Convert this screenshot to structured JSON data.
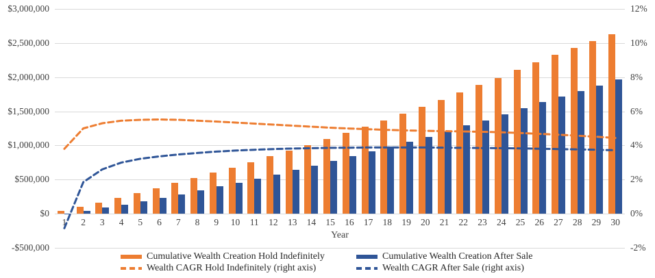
{
  "colors": {
    "hold_orange": "#ED7D31",
    "sale_blue": "#2F5597",
    "gridline": "#d9d9d9",
    "text": "#404040"
  },
  "chart_data": {
    "type": "combo-bar-line",
    "title": "",
    "xlabel": "Year",
    "categories": [
      "1",
      "2",
      "3",
      "4",
      "5",
      "6",
      "7",
      "8",
      "9",
      "10",
      "11",
      "12",
      "13",
      "14",
      "15",
      "16",
      "17",
      "18",
      "19",
      "20",
      "21",
      "22",
      "23",
      "24",
      "25",
      "26",
      "27",
      "28",
      "29",
      "30"
    ],
    "left_axis": {
      "min": -500000,
      "max": 3000000,
      "tick_values": [
        3000000,
        2500000,
        2000000,
        1500000,
        1000000,
        500000,
        0,
        -500000
      ],
      "tick_labels": [
        "$3,000,000",
        "$2,500,000",
        "$2,000,000",
        "$1,500,000",
        "$1,000,000",
        "$500,000",
        "$0",
        "-$500,000"
      ]
    },
    "right_axis": {
      "min": -2,
      "max": 12,
      "tick_values": [
        12,
        10,
        8,
        6,
        4,
        2,
        0,
        -2
      ],
      "tick_labels": [
        "12%",
        "10%",
        "8%",
        "6%",
        "4%",
        "2%",
        "0%",
        "-2%"
      ]
    },
    "grid": "horizontal-only",
    "legend_position": "bottom",
    "series": [
      {
        "name": "Cumulative Wealth Creation Hold Indefinitely",
        "type": "bar",
        "axis": "left",
        "color": "#ED7D31",
        "values": [
          40000,
          100000,
          165000,
          230000,
          300000,
          370000,
          450000,
          520000,
          600000,
          670000,
          750000,
          840000,
          920000,
          1000000,
          1100000,
          1190000,
          1280000,
          1370000,
          1470000,
          1570000,
          1670000,
          1780000,
          1890000,
          1990000,
          2110000,
          2220000,
          2330000,
          2430000,
          2530000,
          2630000
        ]
      },
      {
        "name": "Cumulative Wealth Creation After Sale",
        "type": "bar",
        "axis": "left",
        "color": "#2F5597",
        "values": [
          5000,
          40000,
          90000,
          135000,
          185000,
          230000,
          280000,
          340000,
          400000,
          450000,
          510000,
          570000,
          640000,
          700000,
          770000,
          840000,
          910000,
          980000,
          1050000,
          1130000,
          1210000,
          1300000,
          1370000,
          1460000,
          1550000,
          1640000,
          1720000,
          1800000,
          1880000,
          1970000
        ]
      },
      {
        "name": "Wealth CAGR Hold Indefinitely (right axis)",
        "type": "line",
        "dashed": true,
        "axis": "right",
        "color": "#ED7D31",
        "values": [
          3.8,
          5.0,
          5.3,
          5.45,
          5.5,
          5.52,
          5.5,
          5.45,
          5.4,
          5.34,
          5.28,
          5.22,
          5.16,
          5.1,
          5.04,
          4.99,
          4.95,
          4.91,
          4.88,
          4.86,
          4.84,
          4.82,
          4.8,
          4.77,
          4.73,
          4.68,
          4.63,
          4.57,
          4.51,
          4.44
        ]
      },
      {
        "name": "Wealth CAGR After Sale (right axis)",
        "type": "line",
        "dashed": true,
        "axis": "right",
        "color": "#2F5597",
        "values": [
          -0.85,
          1.85,
          2.6,
          3.0,
          3.22,
          3.36,
          3.47,
          3.56,
          3.64,
          3.7,
          3.75,
          3.79,
          3.82,
          3.84,
          3.86,
          3.87,
          3.88,
          3.88,
          3.88,
          3.88,
          3.87,
          3.86,
          3.85,
          3.84,
          3.83,
          3.81,
          3.79,
          3.77,
          3.75,
          3.72
        ]
      }
    ]
  }
}
